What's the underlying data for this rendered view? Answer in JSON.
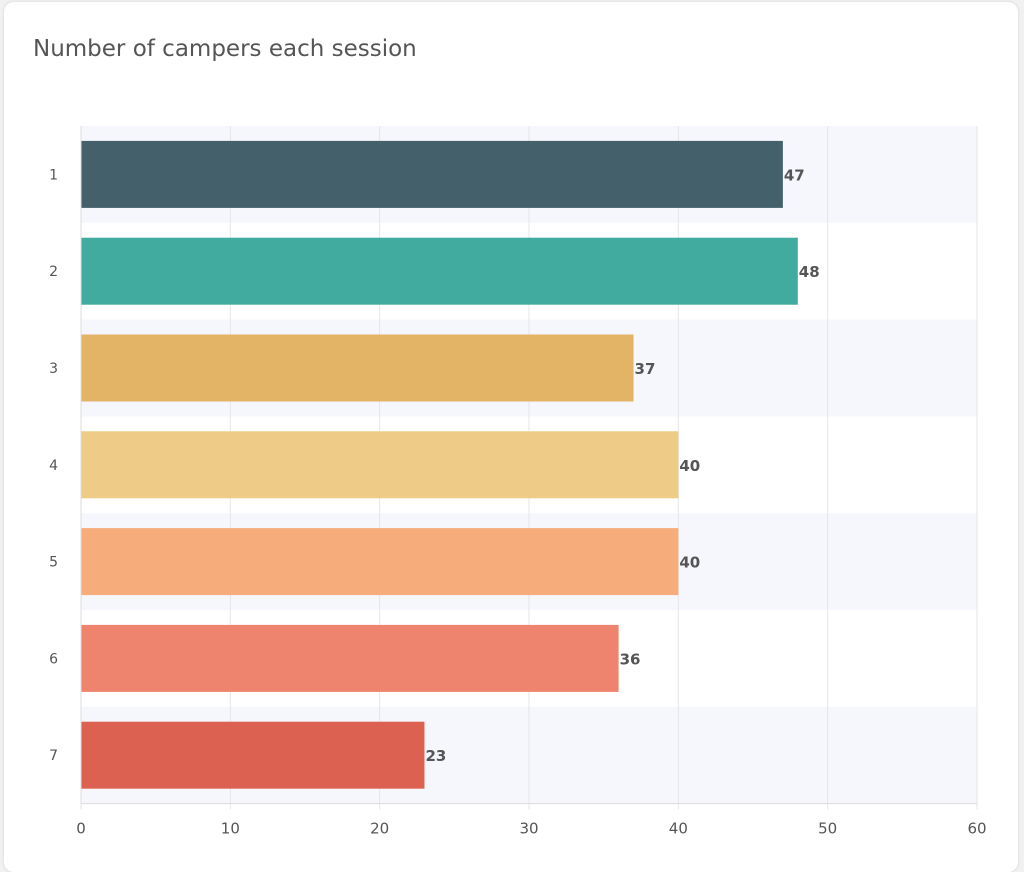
{
  "title": "Number of campers each session",
  "chart_data": {
    "type": "bar",
    "orientation": "horizontal",
    "title": "Number of campers each session",
    "categories": [
      "1",
      "2",
      "3",
      "4",
      "5",
      "6",
      "7"
    ],
    "values": [
      47,
      48,
      37,
      40,
      40,
      36,
      23
    ],
    "colors": [
      "#44606a",
      "#41ab9f",
      "#e3b465",
      "#eecb87",
      "#f6ad7b",
      "#ee846d",
      "#dd6150"
    ],
    "xlim": [
      0,
      60
    ],
    "xticks": [
      0,
      10,
      20,
      30,
      40,
      50,
      60
    ],
    "xlabel": "",
    "ylabel": "",
    "band_color": "#f6f7fd",
    "grid": true,
    "data_labels": true
  }
}
